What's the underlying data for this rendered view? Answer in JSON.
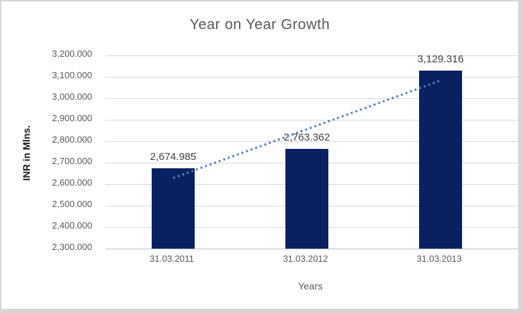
{
  "chart_data": {
    "type": "bar",
    "title": "Year on Year Growth",
    "xlabel": "Years",
    "ylabel": "INR in Mlns.",
    "categories": [
      "31.03.2011",
      "31.03.2012",
      "31.03.2013"
    ],
    "values": [
      2674.985,
      2763.362,
      3129.316
    ],
    "data_labels": [
      "2,674.985",
      "2,763.362",
      "3,129.316"
    ],
    "ylim": [
      2300,
      3200
    ],
    "ytick_step": 100,
    "ytick_labels_top_to_bottom": [
      "3,200.000",
      "3,100.000",
      "3,000.000",
      "2,900.000",
      "2,800.000",
      "2,700.000",
      "2,600.000",
      "2,500.000",
      "2,400.000",
      "2,300.000"
    ],
    "grid": true,
    "legend": "none",
    "trendline": {
      "type": "linear",
      "style": "dotted",
      "start_value": 2628.7,
      "end_value": 3083.0
    }
  },
  "colors": {
    "bar_fill": "#0A2161",
    "trendline": "#4E82C4",
    "gridline": "#D9D9D9",
    "axis_line": "#BFBFBF",
    "axis_text": "#595959",
    "data_label_text": "#404040",
    "chart_bg": "#FFFFFF",
    "page_bg": "#D6D6D6"
  }
}
